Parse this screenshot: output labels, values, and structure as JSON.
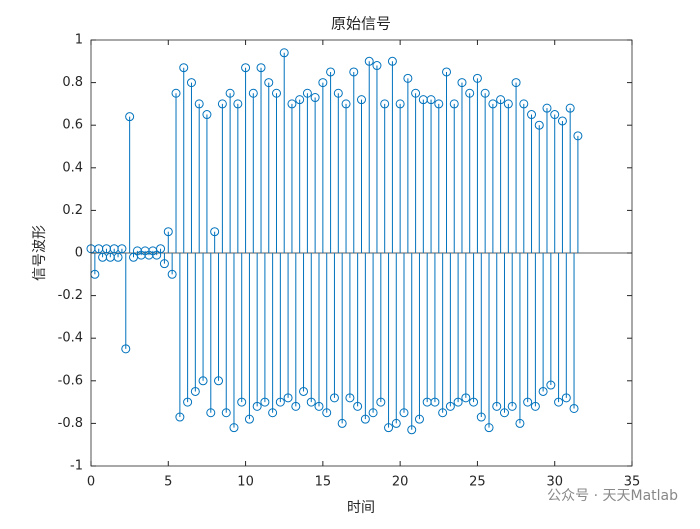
{
  "chart_data": {
    "type": "stem",
    "title": "原始信号",
    "x_label": "时间",
    "y_label": "信号波形",
    "color": "#0072bd",
    "x": [
      0,
      0.25,
      0.5,
      0.75,
      1,
      1.25,
      1.5,
      1.75,
      2,
      2.25,
      2.5,
      2.75,
      3,
      3.25,
      3.5,
      3.75,
      4,
      4.25,
      4.5,
      4.75,
      5,
      5.25,
      5.5,
      5.75,
      6,
      6.25,
      6.5,
      6.75,
      7,
      7.25,
      7.5,
      7.75,
      8,
      8.25,
      8.5,
      8.75,
      9,
      9.25,
      9.5,
      9.75,
      10,
      10.25,
      10.5,
      10.75,
      11,
      11.25,
      11.5,
      11.75,
      12,
      12.25,
      12.5,
      12.75,
      13,
      13.25,
      13.5,
      13.75,
      14,
      14.25,
      14.5,
      14.75,
      15,
      15.25,
      15.5,
      15.75,
      16,
      16.25,
      16.5,
      16.75,
      17,
      17.25,
      17.5,
      17.75,
      18,
      18.25,
      18.5,
      18.75,
      19,
      19.25,
      19.5,
      19.75,
      20,
      20.25,
      20.5,
      20.75,
      21,
      21.25,
      21.5,
      21.75,
      22,
      22.25,
      22.5,
      22.75,
      23,
      23.25,
      23.5,
      23.75,
      24,
      24.25,
      24.5,
      24.75,
      25,
      25.25,
      25.5,
      25.75,
      26,
      26.25,
      26.5,
      26.75,
      27,
      27.25,
      27.5,
      27.75,
      28,
      28.25,
      28.5,
      28.75,
      29,
      29.25,
      29.5,
      29.75,
      30,
      30.25,
      30.5,
      30.75,
      31,
      31.25,
      31.5
    ],
    "values": [
      0.02,
      -0.1,
      0.02,
      -0.02,
      0.02,
      -0.02,
      0.02,
      -0.02,
      0.02,
      -0.45,
      0.64,
      -0.02,
      0.01,
      -0.01,
      0.01,
      -0.01,
      0.01,
      -0.01,
      0.02,
      -0.05,
      0.1,
      -0.1,
      0.75,
      -0.77,
      0.87,
      -0.7,
      0.8,
      -0.65,
      0.7,
      -0.6,
      0.65,
      -0.75,
      0.1,
      -0.6,
      0.7,
      -0.75,
      0.75,
      -0.82,
      0.7,
      -0.7,
      0.87,
      -0.78,
      0.75,
      -0.72,
      0.87,
      -0.7,
      0.8,
      -0.75,
      0.75,
      -0.7,
      0.94,
      -0.68,
      0.7,
      -0.72,
      0.72,
      -0.65,
      0.75,
      -0.7,
      0.73,
      -0.72,
      0.8,
      -0.75,
      0.85,
      -0.68,
      0.75,
      -0.8,
      0.7,
      -0.68,
      0.85,
      -0.72,
      0.72,
      -0.78,
      0.9,
      -0.75,
      0.88,
      -0.7,
      0.7,
      -0.82,
      0.9,
      -0.8,
      0.7,
      -0.75,
      0.82,
      -0.83,
      0.75,
      -0.78,
      0.72,
      -0.7,
      0.72,
      -0.7,
      0.7,
      -0.75,
      0.85,
      -0.72,
      0.7,
      -0.7,
      0.8,
      -0.68,
      0.75,
      -0.7,
      0.82,
      -0.77,
      0.75,
      -0.82,
      0.7,
      -0.72,
      0.72,
      -0.75,
      0.7,
      -0.72,
      0.8,
      -0.8,
      0.7,
      -0.7,
      0.65,
      -0.72,
      0.6,
      -0.65,
      0.68,
      -0.62,
      0.65,
      -0.7,
      0.62,
      -0.68,
      0.68,
      -0.73,
      0.55
    ],
    "xlim": [
      0,
      35
    ],
    "xticks": [
      0,
      5,
      10,
      15,
      20,
      25,
      30,
      35
    ],
    "ylim": [
      -1,
      1
    ],
    "yticks": [
      -1,
      -0.8,
      -0.6,
      -0.4,
      -0.2,
      0,
      0.2,
      0.4,
      0.6,
      0.8,
      1
    ]
  },
  "watermark": "公众号 · 天天Matlab"
}
